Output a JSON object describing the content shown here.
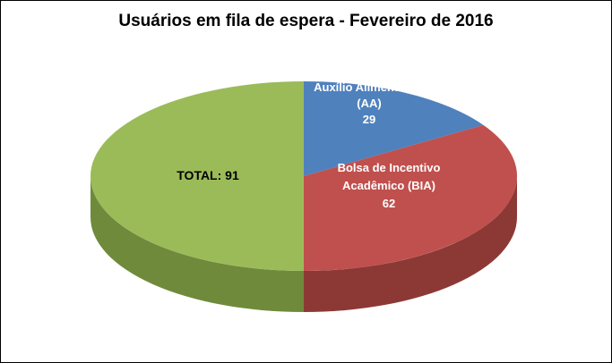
{
  "chart_data": {
    "type": "pie",
    "title": "Usuários em fila de espera - Fevereiro de 2016",
    "effect": "3d",
    "legend": false,
    "background": "#FFFFFF",
    "border_color": "#000000",
    "slices": [
      {
        "name": "Auxílio Alimentação (AA)",
        "value": 29,
        "color": "#4F81BD",
        "side_color": "#38587F",
        "label_lines": [
          "Auxílio Alimentação",
          "(AA)",
          "29"
        ],
        "label_color": "#FFFFFF"
      },
      {
        "name": "Bolsa de Incentivo Acadêmico (BIA)",
        "value": 62,
        "color": "#C0504D",
        "side_color": "#8C3936",
        "label_lines": [
          "Bolsa de Incentivo",
          "Acadêmico (BIA)",
          "62"
        ],
        "label_color": "#FFFFFF"
      },
      {
        "name": "TOTAL",
        "value": 91,
        "color": "#9BBB59",
        "side_color": "#6F8A3B",
        "label_lines": [
          "TOTAL: 91"
        ],
        "label_color": "#000000"
      }
    ]
  }
}
